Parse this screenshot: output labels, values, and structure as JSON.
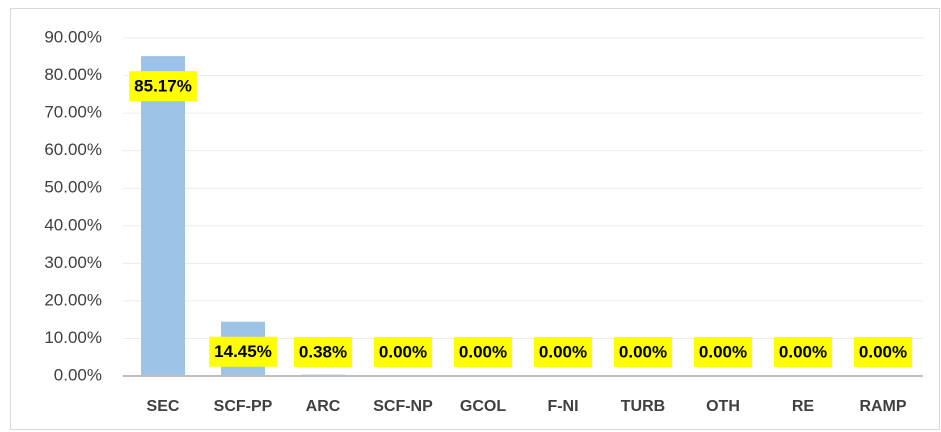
{
  "chart_data": {
    "type": "bar",
    "categories": [
      "SEC",
      "SCF-PP",
      "ARC",
      "SCF-NP",
      "GCOL",
      "F-NI",
      "TURB",
      "OTH",
      "RE",
      "RAMP"
    ],
    "values": [
      85.17,
      14.45,
      0.38,
      0,
      0,
      0,
      0,
      0,
      0,
      0
    ],
    "value_labels": [
      "85.17%",
      "14.45%",
      "0.38%",
      "0.00%",
      "0.00%",
      "0.00%",
      "0.00%",
      "0.00%",
      "0.00%",
      "0.00%"
    ],
    "color": "#9dc3e6",
    "ylim": [
      0,
      90
    ],
    "yticks": [
      {
        "value": 0,
        "label": "0.00%"
      },
      {
        "value": 10,
        "label": "10.00%"
      },
      {
        "value": 20,
        "label": "20.00%"
      },
      {
        "value": 30,
        "label": "30.00%"
      },
      {
        "value": 40,
        "label": "40.00%"
      },
      {
        "value": 50,
        "label": "50.00%"
      },
      {
        "value": 60,
        "label": "60.00%"
      },
      {
        "value": 70,
        "label": "70.00%"
      },
      {
        "value": 80,
        "label": "80.00%"
      },
      {
        "value": 90,
        "label": "90.00%"
      }
    ],
    "grid": true
  }
}
